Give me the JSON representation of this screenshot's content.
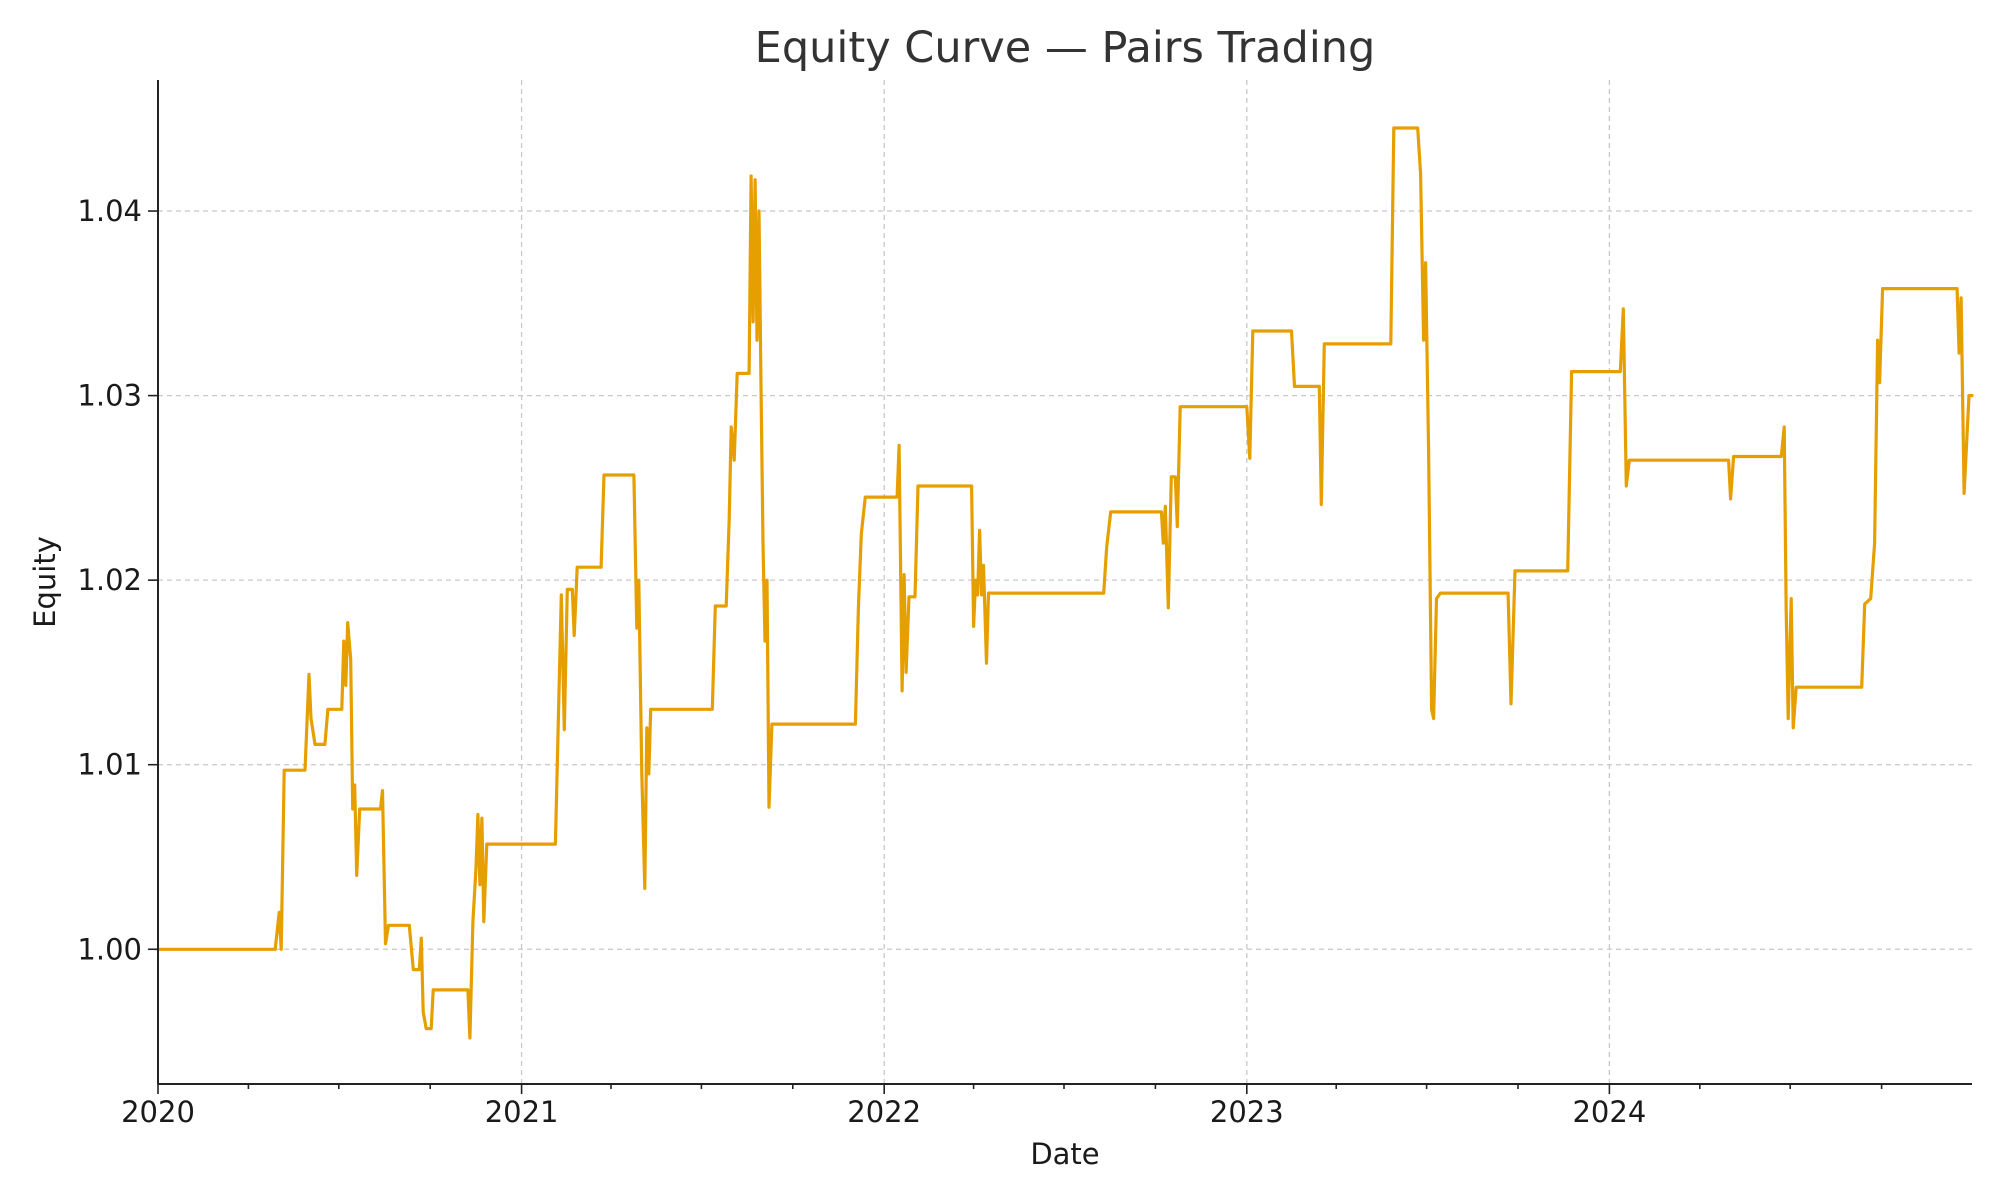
{
  "chart_data": {
    "type": "line",
    "title": "Equity Curve — Pairs Trading",
    "xlabel": "Date",
    "ylabel": "Equity",
    "xlim": [
      "2020-01-01",
      "2024-12-31"
    ],
    "ylim": [
      0.9927,
      1.0471
    ],
    "grid": true,
    "line_color": "#e69f00",
    "x_ticks_major": [
      "2020",
      "2021",
      "2022",
      "2023",
      "2024"
    ],
    "y_ticks": [
      "1.00",
      "1.01",
      "1.02",
      "1.03",
      "1.04"
    ],
    "series": [
      {
        "points": [
          [
            "2020-01-01",
            1.0
          ],
          [
            "2020-04-28",
            1.0
          ],
          [
            "2020-05-02",
            1.002
          ],
          [
            "2020-05-04",
            1.0
          ],
          [
            "2020-05-07",
            1.0097
          ],
          [
            "2020-05-28",
            1.0097
          ],
          [
            "2020-06-01",
            1.0149
          ],
          [
            "2020-06-03",
            1.0125
          ],
          [
            "2020-06-07",
            1.0111
          ],
          [
            "2020-06-17",
            1.0111
          ],
          [
            "2020-06-20",
            1.013
          ],
          [
            "2020-07-04",
            1.013
          ],
          [
            "2020-07-06",
            1.0167
          ],
          [
            "2020-07-08",
            1.0143
          ],
          [
            "2020-07-10",
            1.0177
          ],
          [
            "2020-07-13",
            1.0157
          ],
          [
            "2020-07-15",
            1.0076
          ],
          [
            "2020-07-17",
            1.0089
          ],
          [
            "2020-07-19",
            1.004
          ],
          [
            "2020-07-22",
            1.0076
          ],
          [
            "2020-08-12",
            1.0076
          ],
          [
            "2020-08-14",
            1.0086
          ],
          [
            "2020-08-17",
            1.0003
          ],
          [
            "2020-08-20",
            1.0013
          ],
          [
            "2020-09-10",
            1.0013
          ],
          [
            "2020-09-14",
            0.9989
          ],
          [
            "2020-09-20",
            0.9989
          ],
          [
            "2020-09-22",
            1.0006
          ],
          [
            "2020-09-24",
            0.9966
          ],
          [
            "2020-09-27",
            0.9957
          ],
          [
            "2020-10-02",
            0.9957
          ],
          [
            "2020-10-04",
            0.9978
          ],
          [
            "2020-11-08",
            0.9978
          ],
          [
            "2020-11-10",
            0.9952
          ],
          [
            "2020-11-13",
            1.0015
          ],
          [
            "2020-11-16",
            1.0043
          ],
          [
            "2020-11-18",
            1.0073
          ],
          [
            "2020-11-20",
            1.0035
          ],
          [
            "2020-11-22",
            1.0071
          ],
          [
            "2020-11-24",
            1.0015
          ],
          [
            "2020-11-27",
            1.0057
          ],
          [
            "2021-02-04",
            1.0057
          ],
          [
            "2021-02-10",
            1.0192
          ],
          [
            "2021-02-13",
            1.0119
          ],
          [
            "2021-02-16",
            1.0195
          ],
          [
            "2021-02-21",
            1.0195
          ],
          [
            "2021-02-23",
            1.017
          ],
          [
            "2021-02-26",
            1.0207
          ],
          [
            "2021-03-22",
            1.0207
          ],
          [
            "2021-03-25",
            1.0257
          ],
          [
            "2021-04-24",
            1.0257
          ],
          [
            "2021-04-27",
            1.0174
          ],
          [
            "2021-04-29",
            1.02
          ],
          [
            "2021-05-02",
            1.0095
          ],
          [
            "2021-05-05",
            1.0033
          ],
          [
            "2021-05-07",
            1.012
          ],
          [
            "2021-05-09",
            1.0095
          ],
          [
            "2021-05-11",
            1.013
          ],
          [
            "2021-07-12",
            1.013
          ],
          [
            "2021-07-15",
            1.0186
          ],
          [
            "2021-07-26",
            1.0186
          ],
          [
            "2021-07-29",
            1.0233
          ],
          [
            "2021-07-31",
            1.0283
          ],
          [
            "2021-08-03",
            1.0265
          ],
          [
            "2021-08-06",
            1.0312
          ],
          [
            "2021-08-18",
            1.0312
          ],
          [
            "2021-08-20",
            1.0419
          ],
          [
            "2021-08-22",
            1.034
          ],
          [
            "2021-08-24",
            1.0417
          ],
          [
            "2021-08-26",
            1.033
          ],
          [
            "2021-08-28",
            1.04
          ],
          [
            "2021-08-30",
            1.0305
          ],
          [
            "2021-09-01",
            1.022
          ],
          [
            "2021-09-03",
            1.0167
          ],
          [
            "2021-09-05",
            1.02
          ],
          [
            "2021-09-07",
            1.0077
          ],
          [
            "2021-09-10",
            1.0122
          ],
          [
            "2021-12-03",
            1.0122
          ],
          [
            "2021-12-06",
            1.0185
          ],
          [
            "2021-12-09",
            1.0225
          ],
          [
            "2021-12-13",
            1.0245
          ],
          [
            "2022-01-14",
            1.0245
          ],
          [
            "2022-01-16",
            1.0273
          ],
          [
            "2022-01-19",
            1.014
          ],
          [
            "2022-01-21",
            1.0203
          ],
          [
            "2022-01-23",
            1.015
          ],
          [
            "2022-01-26",
            1.0191
          ],
          [
            "2022-02-01",
            1.0191
          ],
          [
            "2022-02-04",
            1.0251
          ],
          [
            "2022-03-30",
            1.0251
          ],
          [
            "2022-04-01",
            1.0175
          ],
          [
            "2022-04-03",
            1.02
          ],
          [
            "2022-04-05",
            1.0192
          ],
          [
            "2022-04-07",
            1.0227
          ],
          [
            "2022-04-09",
            1.0192
          ],
          [
            "2022-04-11",
            1.0208
          ],
          [
            "2022-04-14",
            1.0155
          ],
          [
            "2022-04-16",
            1.0193
          ],
          [
            "2022-08-10",
            1.0193
          ],
          [
            "2022-08-13",
            1.0218
          ],
          [
            "2022-08-17",
            1.0237
          ],
          [
            "2022-10-07",
            1.0237
          ],
          [
            "2022-10-09",
            1.022
          ],
          [
            "2022-10-11",
            1.024
          ],
          [
            "2022-10-14",
            1.0185
          ],
          [
            "2022-10-17",
            1.0256
          ],
          [
            "2022-10-21",
            1.0256
          ],
          [
            "2022-10-23",
            1.0229
          ],
          [
            "2022-10-26",
            1.0294
          ],
          [
            "2023-01-01",
            1.0294
          ],
          [
            "2023-01-04",
            1.0266
          ],
          [
            "2023-01-07",
            1.0335
          ],
          [
            "2023-02-15",
            1.0335
          ],
          [
            "2023-02-18",
            1.0305
          ],
          [
            "2023-03-15",
            1.0305
          ],
          [
            "2023-03-17",
            1.0241
          ],
          [
            "2023-03-20",
            1.0328
          ],
          [
            "2023-05-26",
            1.0328
          ],
          [
            "2023-05-29",
            1.0445
          ],
          [
            "2023-06-22",
            1.0445
          ],
          [
            "2023-06-25",
            1.042
          ],
          [
            "2023-06-28",
            1.033
          ],
          [
            "2023-06-30",
            1.0372
          ],
          [
            "2023-07-03",
            1.027
          ],
          [
            "2023-07-06",
            1.013
          ],
          [
            "2023-07-08",
            1.0125
          ],
          [
            "2023-07-11",
            1.019
          ],
          [
            "2023-07-15",
            1.0193
          ],
          [
            "2023-09-21",
            1.0193
          ],
          [
            "2023-09-24",
            1.0133
          ],
          [
            "2023-09-28",
            1.0205
          ],
          [
            "2023-11-20",
            1.0205
          ],
          [
            "2023-11-24",
            1.0313
          ],
          [
            "2024-01-12",
            1.0313
          ],
          [
            "2024-01-15",
            1.0347
          ],
          [
            "2024-01-18",
            1.0251
          ],
          [
            "2024-01-21",
            1.0265
          ],
          [
            "2024-04-30",
            1.0265
          ],
          [
            "2024-05-02",
            1.0244
          ],
          [
            "2024-05-05",
            1.0267
          ],
          [
            "2024-06-22",
            1.0267
          ],
          [
            "2024-06-25",
            1.0283
          ],
          [
            "2024-06-27",
            1.0183
          ],
          [
            "2024-06-29",
            1.0125
          ],
          [
            "2024-07-02",
            1.019
          ],
          [
            "2024-07-04",
            1.012
          ],
          [
            "2024-07-07",
            1.0142
          ],
          [
            "2024-09-11",
            1.0142
          ],
          [
            "2024-09-14",
            1.0187
          ],
          [
            "2024-09-20",
            1.019
          ],
          [
            "2024-09-24",
            1.022
          ],
          [
            "2024-09-27",
            1.033
          ],
          [
            "2024-09-29",
            1.0307
          ],
          [
            "2024-10-02",
            1.0358
          ],
          [
            "2024-12-16",
            1.0358
          ],
          [
            "2024-12-18",
            1.0323
          ],
          [
            "2024-12-20",
            1.0353
          ],
          [
            "2024-12-23",
            1.0247
          ],
          [
            "2024-12-28",
            1.03
          ],
          [
            "2024-12-31",
            1.03
          ]
        ]
      }
    ]
  }
}
